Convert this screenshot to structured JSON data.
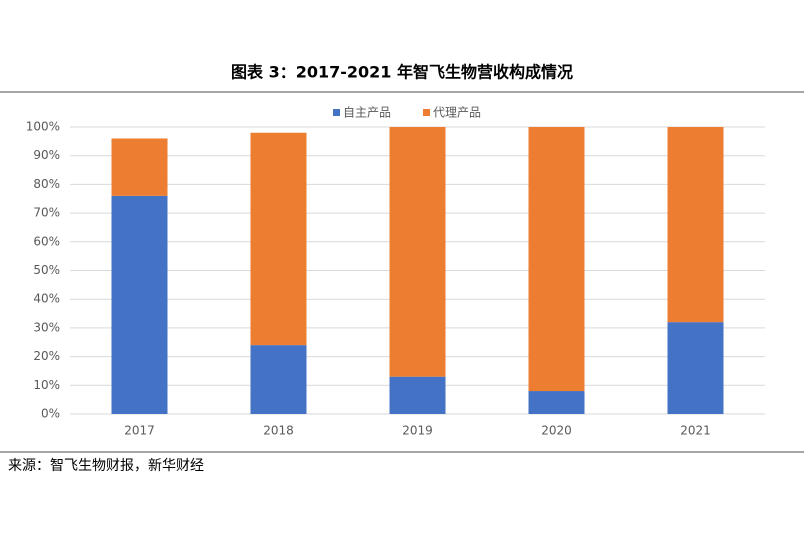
{
  "chart_data": {
    "type": "stacked_bar",
    "title": "图表 3：2017-2021 年智飞生物营收构成情况",
    "categories": [
      "2017",
      "2018",
      "2019",
      "2020",
      "2021"
    ],
    "series": [
      {
        "name": "自主产品",
        "color": "#4472c4",
        "values": [
          76,
          24,
          13,
          8,
          32
        ]
      },
      {
        "name": "代理产品",
        "color": "#ed7d31",
        "values": [
          20,
          74,
          87,
          92,
          68
        ]
      }
    ],
    "ylim": [
      0,
      100
    ],
    "yticks": [
      {
        "value": 0,
        "label": "0%"
      },
      {
        "value": 10,
        "label": "10%"
      },
      {
        "value": 20,
        "label": "20%"
      },
      {
        "value": 30,
        "label": "30%"
      },
      {
        "value": 40,
        "label": "40%"
      },
      {
        "value": 50,
        "label": "50%"
      },
      {
        "value": 60,
        "label": "60%"
      },
      {
        "value": 70,
        "label": "70%"
      },
      {
        "value": 80,
        "label": "80%"
      },
      {
        "value": 90,
        "label": "90%"
      },
      {
        "value": 100,
        "label": "100%"
      }
    ],
    "grid": true,
    "legend": "top",
    "source": "来源：智飞生物财报，新华财经"
  }
}
